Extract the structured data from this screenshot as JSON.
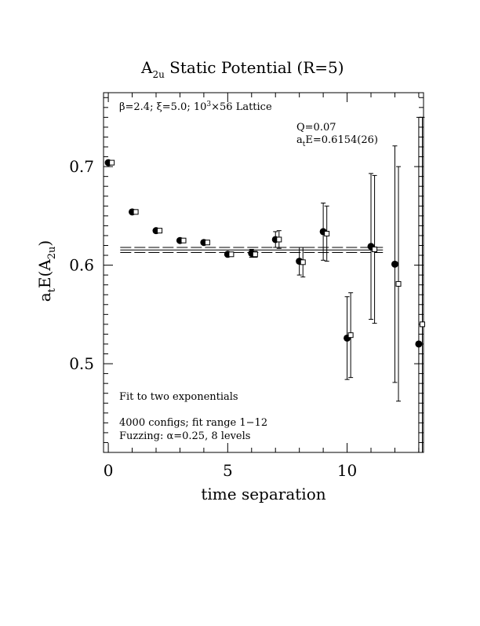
{
  "chart_data": {
    "type": "scatter",
    "title": "A",
    "title_subscript": "2u",
    "title_suffix": " Static Potential (R=5)",
    "xlabel": "time separation",
    "ylabel_main": "a",
    "ylabel_sub1": "t",
    "ylabel_mid": "E(A",
    "ylabel_sub2": "2u",
    "ylabel_end": ")",
    "xlim": [
      -0.2,
      13.2
    ],
    "ylim": [
      0.41,
      0.775
    ],
    "x_ticks": [
      0,
      5,
      10
    ],
    "x_tick_labels": [
      "0",
      "5",
      "10"
    ],
    "y_ticks": [
      0.5,
      0.6,
      0.7
    ],
    "y_tick_labels": [
      "0.5",
      "0.6",
      "0.7"
    ],
    "grid": false,
    "annotations": {
      "lattice_pre": "β=2.4; ξ=5.0; 10",
      "lattice_sup": "3",
      "lattice_post": "×56 Lattice",
      "q": "Q=0.07",
      "energy_pre": "a",
      "energy_sub": "t",
      "energy_post": "E=0.6154(26)",
      "fit_desc": "Fit to two exponentials",
      "configs": "4000 configs; fit range 1−12",
      "fuzzing": "Fuzzing: α=0.25, 8 levels"
    },
    "series": [
      {
        "marker": "filled-circle",
        "points": [
          {
            "x": 0,
            "y": 0.704,
            "err": 0
          },
          {
            "x": 1,
            "y": 0.654,
            "err": 0
          },
          {
            "x": 2,
            "y": 0.635,
            "err": 0
          },
          {
            "x": 3,
            "y": 0.625,
            "err": 0
          },
          {
            "x": 4,
            "y": 0.623,
            "err": 0
          },
          {
            "x": 5,
            "y": 0.611,
            "err": 0
          },
          {
            "x": 6,
            "y": 0.612,
            "err": 0.004
          },
          {
            "x": 7,
            "y": 0.626,
            "err": 0.008
          },
          {
            "x": 8,
            "y": 0.604,
            "err": 0.014
          },
          {
            "x": 9,
            "y": 0.634,
            "err": 0.029
          },
          {
            "x": 11,
            "y": 0.619,
            "err": 0.074
          },
          {
            "x": 10,
            "y": 0.526,
            "err": 0.042
          },
          {
            "x": 12,
            "y": 0.601,
            "err": 0.12
          },
          {
            "x": 13,
            "y": 0.52,
            "err": 0.23
          }
        ]
      },
      {
        "marker": "open-square",
        "points": [
          {
            "x": 0.15,
            "y": 0.704,
            "err": 0
          },
          {
            "x": 1.15,
            "y": 0.654,
            "err": 0
          },
          {
            "x": 2.15,
            "y": 0.635,
            "err": 0
          },
          {
            "x": 3.15,
            "y": 0.625,
            "err": 0
          },
          {
            "x": 4.15,
            "y": 0.623,
            "err": 0
          },
          {
            "x": 5.15,
            "y": 0.611,
            "err": 0
          },
          {
            "x": 6.15,
            "y": 0.611,
            "err": 0.003
          },
          {
            "x": 7.15,
            "y": 0.626,
            "err": 0.009
          },
          {
            "x": 8.15,
            "y": 0.603,
            "err": 0.015
          },
          {
            "x": 9.15,
            "y": 0.632,
            "err": 0.028
          },
          {
            "x": 10.15,
            "y": 0.529,
            "err": 0.043
          },
          {
            "x": 11.15,
            "y": 0.616,
            "err": 0.075
          },
          {
            "x": 12.15,
            "y": 0.581,
            "err": 0.119
          },
          {
            "x": 13.15,
            "y": 0.54,
            "err": 0.21
          }
        ]
      }
    ],
    "fit_band": {
      "center": 0.6154,
      "error": 0.0026,
      "x_range": [
        0.5,
        11.5
      ]
    }
  }
}
